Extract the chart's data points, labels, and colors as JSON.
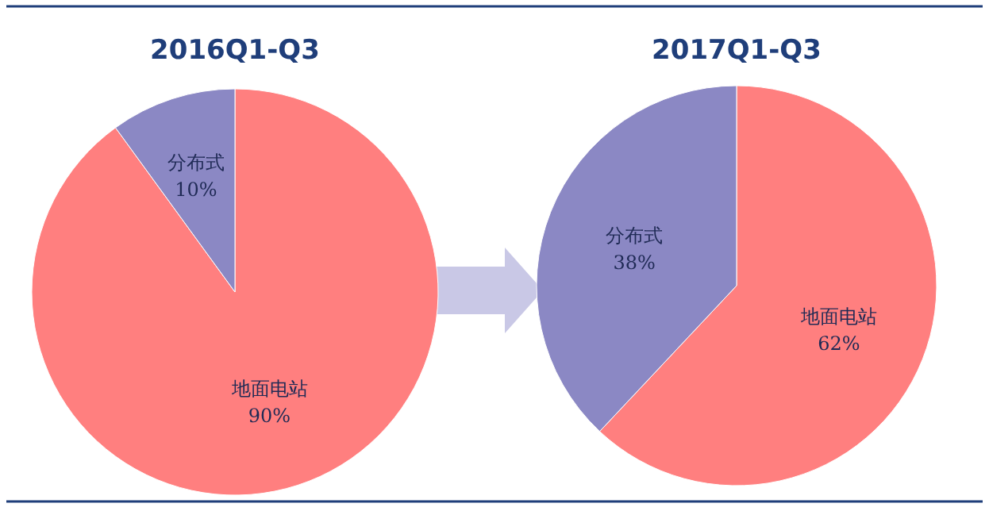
{
  "chart_data": [
    {
      "type": "pie",
      "title": "2016Q1-Q3",
      "categories": [
        "地面电站",
        "分布式"
      ],
      "values": [
        90,
        10
      ],
      "colors": [
        "#ff7f7f",
        "#8b88c4"
      ],
      "value_labels": [
        "90%",
        "10%"
      ]
    },
    {
      "type": "pie",
      "title": "2017Q1-Q3",
      "categories": [
        "地面电站",
        "分布式"
      ],
      "values": [
        62,
        38
      ],
      "colors": [
        "#ff7f7f",
        "#8b88c4"
      ],
      "value_labels": [
        "62%",
        "38%"
      ]
    }
  ]
}
